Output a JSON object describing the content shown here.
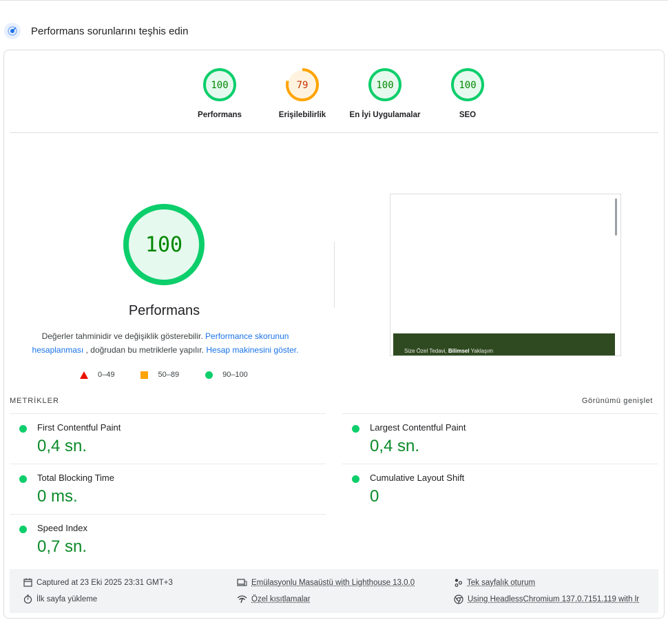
{
  "section": {
    "title": "Performans sorunlarını teşhis edin",
    "icon": "gauge-icon"
  },
  "gauges": [
    {
      "label": "Performans",
      "score": "100",
      "status": "pass"
    },
    {
      "label": "Erişilebilirlik",
      "score": "79",
      "status": "average"
    },
    {
      "label": "En İyi Uygulamalar",
      "score": "100",
      "status": "pass"
    },
    {
      "label": "SEO",
      "score": "100",
      "status": "pass"
    }
  ],
  "performance": {
    "score": "100",
    "title": "Performans",
    "desc_text_1": "Değerler tahminidir ve değişiklik gösterebilir.",
    "desc_link_1": "Performance skorunun hesaplanması",
    "desc_text_2": ", doğrudan bu metriklerle yapılır.",
    "desc_link_2": "Hesap makinesini göster."
  },
  "legend": [
    {
      "label": "0–49",
      "shape": "triangle",
      "color": "#eb0f00"
    },
    {
      "label": "50–89",
      "shape": "square",
      "color": "#ffa400"
    },
    {
      "label": "90–100",
      "shape": "circle",
      "color": "#0cce6b"
    }
  ],
  "screenshot": {
    "hero_text_pre": "Size Özel Tedavi,",
    "hero_text_bold": "Bilimsel",
    "hero_text_post": "Yaklaşım"
  },
  "metrics": {
    "heading": "METRİKLER",
    "expand_label": "Görünümü genişlet",
    "items": [
      {
        "title": "First Contentful Paint",
        "value": "0,4 sn.",
        "status": "pass"
      },
      {
        "title": "Largest Contentful Paint",
        "value": "0,4 sn.",
        "status": "pass"
      },
      {
        "title": "Total Blocking Time",
        "value": "0 ms.",
        "status": "pass"
      },
      {
        "title": "Cumulative Layout Shift",
        "value": "0",
        "status": "pass"
      },
      {
        "title": "Speed Index",
        "value": "0,7 sn.",
        "status": "pass"
      }
    ]
  },
  "footer": {
    "captured": "Captured at 23 Eki 2025 23:31 GMT+3",
    "page_load": "İlk sayfa yükleme",
    "emulation": "Emülasyonlu Masaüstü with Lighthouse 13.0.0",
    "throttling": "Özel kısıtlamalar",
    "session": "Tek sayfalık oturum",
    "browser": "Using HeadlessChromium 137.0.7151.119 with lr"
  },
  "colors": {
    "pass": "#0cce6b",
    "pass_text": "#008800",
    "pass_fill": "#e6f9ee",
    "average": "#ffa400",
    "average_text": "#c33300",
    "average_fill": "#fff3e0",
    "link": "#1a73e8"
  }
}
